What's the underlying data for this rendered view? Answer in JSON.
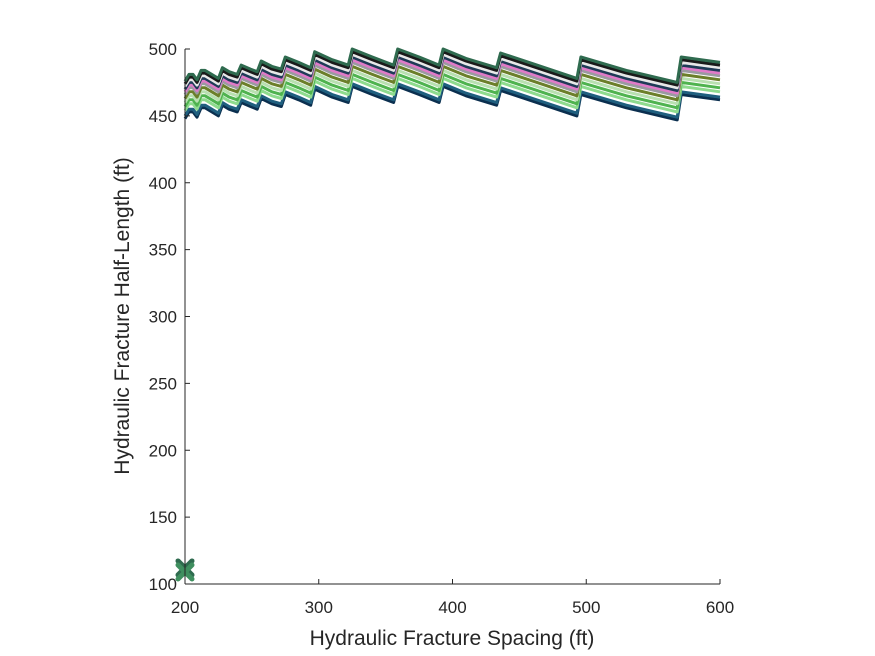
{
  "chart_data": {
    "type": "line",
    "xlabel": "Hydraulic Fracture Spacing (ft)",
    "ylabel": "Hydraulic Fracture Half-Length (ft)",
    "xlim": [
      200,
      600
    ],
    "ylim": [
      100,
      500
    ],
    "xticks": [
      200,
      300,
      400,
      500,
      600
    ],
    "yticks": [
      100,
      150,
      200,
      250,
      300,
      350,
      400,
      450,
      500
    ],
    "grid": false,
    "legend": "none",
    "series": [
      {
        "color": "#2f6b4f",
        "offset": 0
      },
      {
        "color": "#1a1a1a",
        "offset": -2
      },
      {
        "color": "#e8e8e8",
        "offset": -4
      },
      {
        "color": "#1f3b57",
        "offset": -6
      },
      {
        "color": "#e07ac8",
        "offset": -8
      },
      {
        "color": "#9a9aa0",
        "offset": -10
      },
      {
        "color": "#6b7f2a",
        "offset": -13
      },
      {
        "color": "#b8e0b0",
        "offset": -16
      },
      {
        "color": "#4fb34f",
        "offset": -19
      },
      {
        "color": "#8edb8e",
        "offset": -22
      },
      {
        "color": "#1f5f7f",
        "offset": -26
      },
      {
        "color": "#0b2f4f",
        "offset": -28
      }
    ],
    "base_curve": {
      "x": [
        200,
        203,
        206,
        209,
        212,
        215,
        220,
        225,
        228,
        233,
        239,
        242,
        249,
        254,
        257,
        265,
        272,
        275,
        285,
        294,
        297,
        310,
        322,
        325,
        340,
        356,
        359,
        375,
        390,
        393,
        410,
        433,
        436,
        460,
        493,
        496,
        530,
        568,
        571,
        600
      ],
      "y": [
        476,
        481,
        481,
        477,
        484,
        484,
        481,
        478,
        486,
        483,
        481,
        488,
        485,
        483,
        491,
        487,
        485,
        494,
        490,
        486,
        498,
        492,
        488,
        500,
        494,
        488,
        500,
        494,
        488,
        500,
        493,
        486,
        497,
        489,
        478,
        494,
        484,
        475,
        494,
        490
      ]
    },
    "markers": [
      {
        "type": "x",
        "x": 200,
        "y": 112,
        "color": "#2f6b4f"
      },
      {
        "type": "x",
        "x": 200,
        "y": 109,
        "color": "#3f8f5f"
      }
    ]
  }
}
